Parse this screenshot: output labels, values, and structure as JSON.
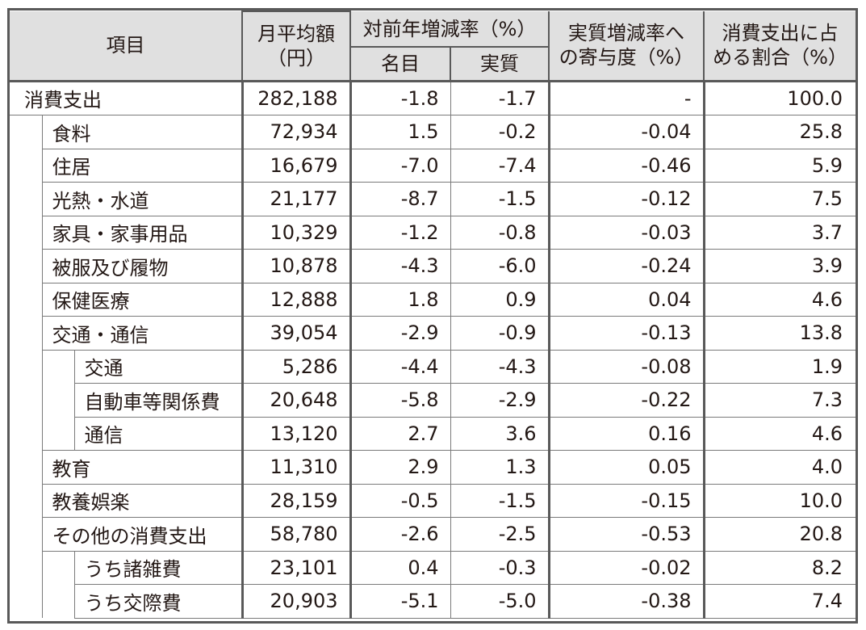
{
  "header": {
    "item": "項目",
    "monthly_avg_line1": "月平均額",
    "monthly_avg_line2": "（円）",
    "yoy_rate": "対前年増減率（%）",
    "nominal": "名目",
    "real": "実質",
    "contribution_line1": "実質増減率へ",
    "contribution_line2": "の寄与度（%）",
    "share_line1": "消費支出に占",
    "share_line2": "める割合（%）"
  },
  "rows": [
    {
      "label": "消費支出",
      "amount": "282,188",
      "nominal": "-1.8",
      "real": "-1.7",
      "contribution": "-",
      "share": "100.0"
    },
    {
      "label": "食料",
      "amount": "72,934",
      "nominal": "1.5",
      "real": "-0.2",
      "contribution": "-0.04",
      "share": "25.8"
    },
    {
      "label": "住居",
      "amount": "16,679",
      "nominal": "-7.0",
      "real": "-7.4",
      "contribution": "-0.46",
      "share": "5.9"
    },
    {
      "label": "光熱・水道",
      "amount": "21,177",
      "nominal": "-8.7",
      "real": "-1.5",
      "contribution": "-0.12",
      "share": "7.5"
    },
    {
      "label": "家具・家事用品",
      "amount": "10,329",
      "nominal": "-1.2",
      "real": "-0.8",
      "contribution": "-0.03",
      "share": "3.7"
    },
    {
      "label": "被服及び履物",
      "amount": "10,878",
      "nominal": "-4.3",
      "real": "-6.0",
      "contribution": "-0.24",
      "share": "3.9"
    },
    {
      "label": "保健医療",
      "amount": "12,888",
      "nominal": "1.8",
      "real": "0.9",
      "contribution": "0.04",
      "share": "4.6"
    },
    {
      "label": "交通・通信",
      "amount": "39,054",
      "nominal": "-2.9",
      "real": "-0.9",
      "contribution": "-0.13",
      "share": "13.8"
    },
    {
      "label": "交通",
      "amount": "5,286",
      "nominal": "-4.4",
      "real": "-4.3",
      "contribution": "-0.08",
      "share": "1.9"
    },
    {
      "label": "自動車等関係費",
      "amount": "20,648",
      "nominal": "-5.8",
      "real": "-2.9",
      "contribution": "-0.22",
      "share": "7.3"
    },
    {
      "label": "通信",
      "amount": "13,120",
      "nominal": "2.7",
      "real": "3.6",
      "contribution": "0.16",
      "share": "4.6"
    },
    {
      "label": "教育",
      "amount": "11,310",
      "nominal": "2.9",
      "real": "1.3",
      "contribution": "0.05",
      "share": "4.0"
    },
    {
      "label": "教養娯楽",
      "amount": "28,159",
      "nominal": "-0.5",
      "real": "-1.5",
      "contribution": "-0.15",
      "share": "10.0"
    },
    {
      "label": "その他の消費支出",
      "amount": "58,780",
      "nominal": "-2.6",
      "real": "-2.5",
      "contribution": "-0.53",
      "share": "20.8"
    },
    {
      "label": "うち諸雑費",
      "amount": "23,101",
      "nominal": "0.4",
      "real": "-0.3",
      "contribution": "-0.02",
      "share": "8.2"
    },
    {
      "label": "うち交際費",
      "amount": "20,903",
      "nominal": "-5.1",
      "real": "-5.0",
      "contribution": "-0.38",
      "share": "7.4"
    }
  ]
}
